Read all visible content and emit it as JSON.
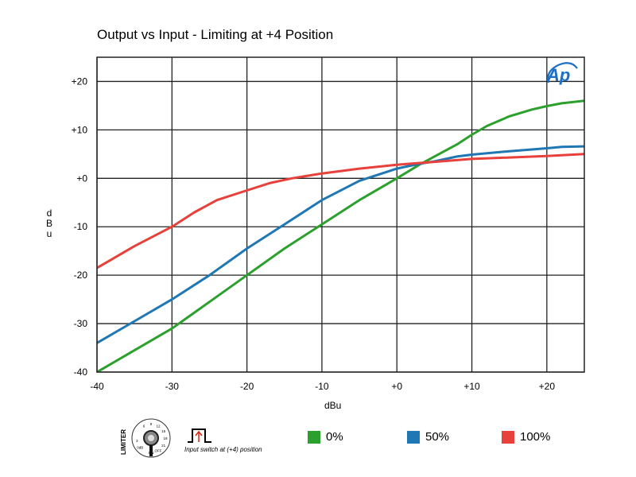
{
  "title": "Output vs Input - Limiting at +4 Position",
  "brand": "Ap",
  "switch_caption": "Input switch at (+4) position",
  "knob": {
    "label": "LIMITER",
    "marks": [
      "6",
      "9",
      "12",
      "15",
      "18",
      "21",
      "OFF",
      "SW",
      "0dB",
      "3"
    ]
  },
  "chart_data": {
    "type": "line",
    "xlabel": "dBu",
    "ylabel": "dBu",
    "xlim": [
      -40,
      25
    ],
    "ylim": [
      -40,
      25
    ],
    "x_ticks": [
      -40,
      -30,
      -20,
      -10,
      0,
      10,
      20
    ],
    "x_tick_labels": [
      "-40",
      "-30",
      "-20",
      "-10",
      "+0",
      "+10",
      "+20"
    ],
    "y_ticks": [
      -40,
      -30,
      -20,
      -10,
      0,
      10,
      20
    ],
    "y_tick_labels": [
      "-40",
      "-30",
      "-20",
      "-10",
      "+0",
      "+10",
      "+20"
    ],
    "grid": true,
    "legend_position": "bottom",
    "series": [
      {
        "name": "0%",
        "color": "#2ca02c",
        "x": [
          -40,
          -35,
          -30,
          -25,
          -20,
          -15,
          -10,
          -5,
          0,
          3,
          5,
          8,
          10,
          12,
          15,
          18,
          20,
          22,
          25
        ],
        "y": [
          -40,
          -35.5,
          -31,
          -25.5,
          -20,
          -14.5,
          -9.5,
          -4.5,
          0,
          2.8,
          4.5,
          7,
          9,
          10.8,
          12.8,
          14.2,
          14.9,
          15.5,
          16
        ]
      },
      {
        "name": "50%",
        "color": "#1f77b4",
        "x": [
          -40,
          -35,
          -30,
          -25,
          -20,
          -15,
          -10,
          -5,
          0,
          3,
          5,
          8,
          10,
          15,
          20,
          22,
          25
        ],
        "y": [
          -34,
          -29.5,
          -25,
          -20,
          -14.5,
          -9.5,
          -4.5,
          -0.5,
          2,
          3,
          3.5,
          4.5,
          4.9,
          5.6,
          6.2,
          6.5,
          6.6
        ]
      },
      {
        "name": "100%",
        "color": "#e8403a",
        "x": [
          -40,
          -35,
          -30,
          -27,
          -24,
          -20,
          -17,
          -14,
          -10,
          -5,
          0,
          5,
          10,
          15,
          20,
          25
        ],
        "y": [
          -18.5,
          -14,
          -10,
          -7,
          -4.5,
          -2.5,
          -1,
          0,
          1,
          2,
          2.8,
          3.4,
          4,
          4.3,
          4.6,
          5
        ]
      }
    ]
  }
}
